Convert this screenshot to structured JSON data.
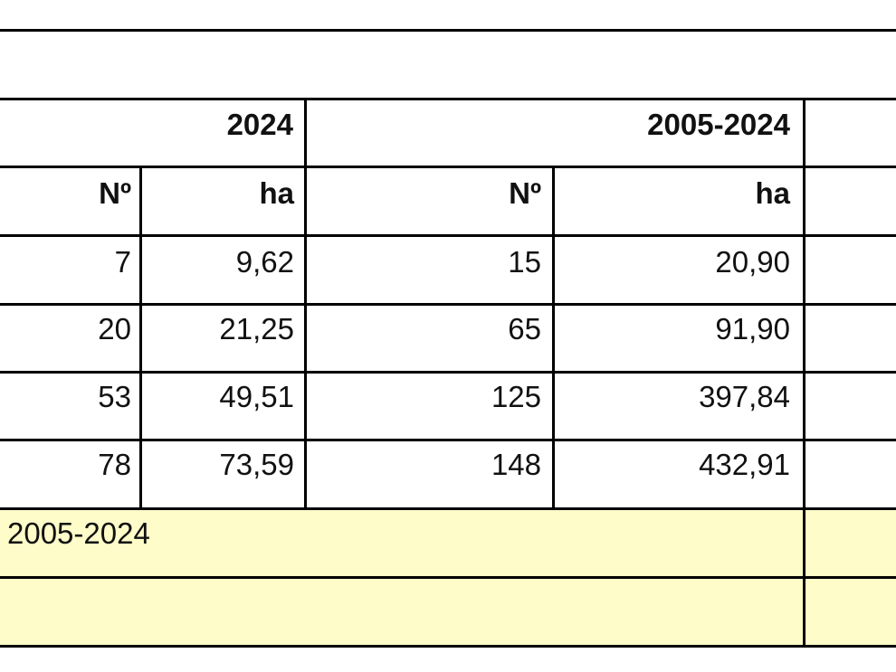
{
  "table": {
    "group_headers": [
      "2024",
      "2005-2024"
    ],
    "column_headers": [
      "Nº",
      "ha",
      "Nº",
      "ha"
    ],
    "rows": [
      [
        "7",
        "9,62",
        "15",
        "20,90"
      ],
      [
        "20",
        "21,25",
        "65",
        "91,90"
      ],
      [
        "53",
        "49,51",
        "125",
        "397,84"
      ],
      [
        "78",
        "73,59",
        "148",
        "432,91"
      ]
    ],
    "footer": "2005-2024"
  }
}
